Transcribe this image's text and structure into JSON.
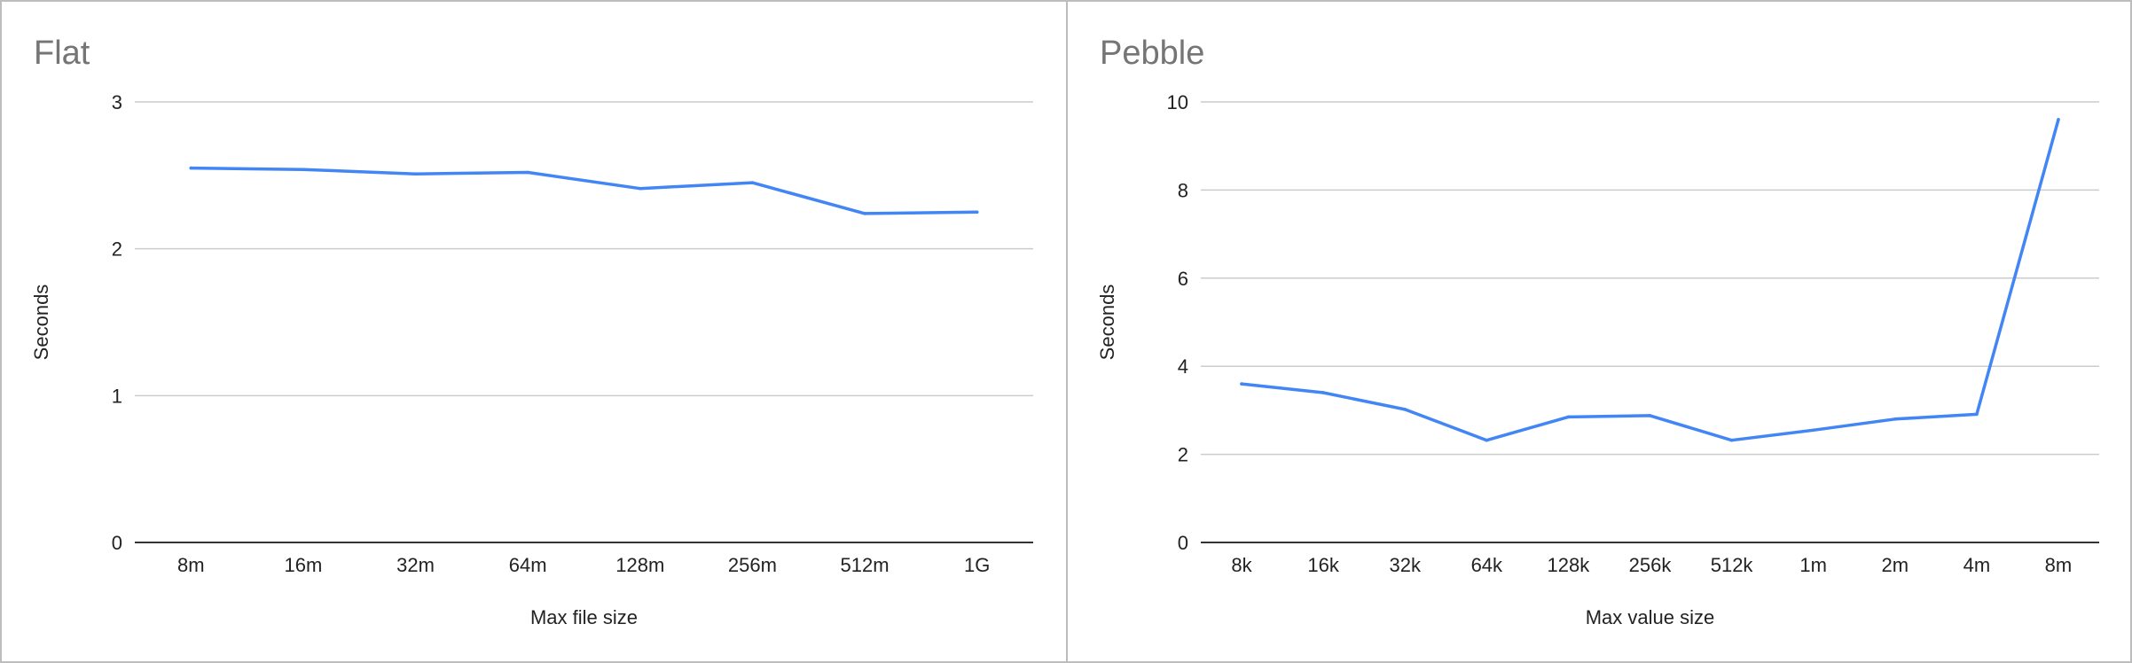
{
  "chart_data": [
    {
      "type": "line",
      "title": "Flat",
      "xlabel": "Max file size",
      "ylabel": "Seconds",
      "categories": [
        "8m",
        "16m",
        "32m",
        "64m",
        "128m",
        "256m",
        "512m",
        "1G"
      ],
      "series": [
        {
          "values": [
            2.55,
            2.54,
            2.51,
            2.52,
            2.41,
            2.45,
            2.24,
            2.25
          ]
        }
      ],
      "ylim": [
        0,
        3
      ],
      "yticks": [
        0,
        1,
        2,
        3
      ],
      "grid": true,
      "colors": {
        "line": "#4285f4",
        "grid": "#cccccc",
        "axis": "#333333"
      }
    },
    {
      "type": "line",
      "title": "Pebble",
      "xlabel": "Max value size",
      "ylabel": "Seconds",
      "categories": [
        "8k",
        "16k",
        "32k",
        "64k",
        "128k",
        "256k",
        "512k",
        "1m",
        "2m",
        "4m",
        "8m"
      ],
      "series": [
        {
          "values": [
            3.6,
            3.4,
            3.02,
            2.32,
            2.85,
            2.88,
            2.32,
            2.55,
            2.8,
            2.91,
            9.6
          ]
        }
      ],
      "ylim": [
        0,
        10
      ],
      "yticks": [
        0,
        2,
        4,
        6,
        8,
        10
      ],
      "grid": true,
      "colors": {
        "line": "#4285f4",
        "grid": "#cccccc",
        "axis": "#333333"
      }
    }
  ]
}
